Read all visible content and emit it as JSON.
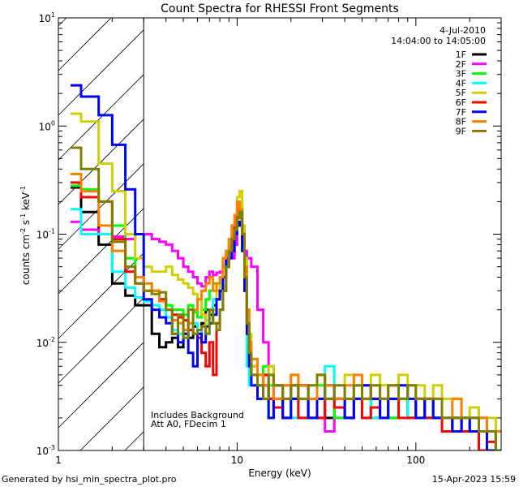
{
  "chart_data": {
    "type": "line",
    "title": "Count Spectra for RHESSI Front Segments",
    "xlabel": "Energy (keV)",
    "ylabel": {
      "pre": "counts cm",
      "exp1": "-2",
      "mid": " s",
      "exp2": "-1",
      "post": " keV",
      "exp3": "-1"
    },
    "xscale": "log",
    "yscale": "log",
    "xlim": [
      1,
      300
    ],
    "ylim": [
      0.001,
      10
    ],
    "x_ticks": [
      {
        "value": 1,
        "label": "1"
      },
      {
        "value": 10,
        "label": "10"
      },
      {
        "value": 100,
        "label": "100"
      }
    ],
    "y_ticks": [
      {
        "value": 0.001,
        "base": "10",
        "exp": "-3"
      },
      {
        "value": 0.01,
        "base": "10",
        "exp": "-2"
      },
      {
        "value": 0.1,
        "base": "10",
        "exp": "-1"
      },
      {
        "value": 1,
        "base": "10",
        "exp": "0"
      },
      {
        "value": 10,
        "base": "10",
        "exp": "1"
      }
    ],
    "excluded_region_keV": [
      1,
      3
    ],
    "annotations": {
      "date": "4-Jul-2010",
      "time_range": "14:04:00 to 14:05:00",
      "note1": "Includes Background",
      "note2": "Att A0, FDecim 1"
    },
    "legend_position": "top-right",
    "energy_edges_keV": [
      1.17,
      1.34,
      1.68,
      2.0,
      2.37,
      2.69,
      3.0,
      3.33,
      3.67,
      4.0,
      4.33,
      4.67,
      5.0,
      5.33,
      5.67,
      6.0,
      6.33,
      6.67,
      7.0,
      7.33,
      7.67,
      8.0,
      8.33,
      8.67,
      9.0,
      9.33,
      9.67,
      10.0,
      10.33,
      10.67,
      11.0,
      11.33,
      11.67,
      12.0,
      13,
      14,
      15,
      16,
      18,
      20,
      22,
      25,
      28,
      31,
      35,
      40,
      45,
      50,
      56,
      63,
      70,
      80,
      90,
      100,
      112,
      125,
      140,
      160,
      180,
      200,
      225,
      250,
      280,
      300
    ],
    "series": [
      {
        "name": "1F",
        "color": "#000000",
        "values": [
          0.27,
          0.16,
          0.08,
          0.035,
          0.027,
          0.022,
          0.022,
          0.012,
          0.009,
          0.01,
          0.011,
          0.009,
          0.012,
          0.011,
          0.014,
          0.013,
          0.015,
          0.02,
          0.018,
          0.022,
          0.025,
          0.03,
          0.04,
          0.05,
          0.07,
          0.08,
          0.11,
          0.15,
          0.16,
          0.1,
          0.05,
          0.015,
          0.008,
          0.006,
          0.004,
          0.005,
          0.003,
          0.004,
          0.002,
          0.003,
          0.004,
          0.002,
          0.003,
          0.002,
          0.003,
          0.002,
          0.004,
          0.003,
          0.002,
          0.003,
          0.002,
          0.003,
          0.002,
          0.003,
          0.002,
          0.002,
          0.0015,
          0.002,
          0.0015,
          0.002,
          0.0015,
          0.0015,
          0.001
        ]
      },
      {
        "name": "2F",
        "color": "#ff00ff",
        "values": [
          0.13,
          0.11,
          0.1,
          0.095,
          0.09,
          0.1,
          0.1,
          0.09,
          0.085,
          0.08,
          0.07,
          0.06,
          0.05,
          0.045,
          0.04,
          0.035,
          0.033,
          0.04,
          0.045,
          0.042,
          0.044,
          0.045,
          0.05,
          0.06,
          0.07,
          0.06,
          0.08,
          0.14,
          0.17,
          0.09,
          0.07,
          0.06,
          0.06,
          0.05,
          0.02,
          0.01,
          0.006,
          0.004,
          0.003,
          0.003,
          0.002,
          0.002,
          0.002,
          0.0015,
          0.002,
          0.002,
          0.003,
          0.004,
          0.003,
          0.003,
          0.004,
          0.003,
          0.002,
          0.003,
          0.003,
          0.002,
          0.002,
          0.002,
          0.002,
          0.0015,
          0.002,
          0.0015,
          0.001
        ]
      },
      {
        "name": "3F",
        "color": "#00ff00",
        "values": [
          0.28,
          0.26,
          0.2,
          0.12,
          0.06,
          0.04,
          0.035,
          0.03,
          0.025,
          0.022,
          0.02,
          0.02,
          0.018,
          0.022,
          0.019,
          0.017,
          0.02,
          0.025,
          0.03,
          0.035,
          0.03,
          0.04,
          0.05,
          0.07,
          0.08,
          0.09,
          0.12,
          0.17,
          0.19,
          0.11,
          0.05,
          0.02,
          0.01,
          0.007,
          0.005,
          0.006,
          0.004,
          0.003,
          0.004,
          0.003,
          0.002,
          0.003,
          0.004,
          0.003,
          0.002,
          0.003,
          0.004,
          0.002,
          0.003,
          0.003,
          0.002,
          0.003,
          0.002,
          0.002,
          0.003,
          0.002,
          0.002,
          0.0015,
          0.002,
          0.0015,
          0.002,
          0.0015,
          0.001
        ]
      },
      {
        "name": "4F",
        "color": "#00ffff",
        "values": [
          0.17,
          0.1,
          0.1,
          0.045,
          0.032,
          0.026,
          0.024,
          0.022,
          0.02,
          0.017,
          0.013,
          0.012,
          0.012,
          0.013,
          0.015,
          0.012,
          0.014,
          0.016,
          0.02,
          0.025,
          0.03,
          0.035,
          0.05,
          0.06,
          0.08,
          0.1,
          0.13,
          0.14,
          0.15,
          0.07,
          0.03,
          0.006,
          0.004,
          0.004,
          0.003,
          0.003,
          0.002,
          0.003,
          0.004,
          0.002,
          0.003,
          0.002,
          0.003,
          0.006,
          0.003,
          0.002,
          0.004,
          0.003,
          0.002,
          0.003,
          0.004,
          0.003,
          0.002,
          0.003,
          0.002,
          0.002,
          0.0015,
          0.002,
          0.002,
          0.0015,
          0.002,
          0.0015,
          0.001
        ]
      },
      {
        "name": "5F",
        "color": "#d0d000",
        "values": [
          1.3,
          1.1,
          0.45,
          0.25,
          0.1,
          0.06,
          0.05,
          0.045,
          0.045,
          0.05,
          0.042,
          0.038,
          0.035,
          0.032,
          0.028,
          0.025,
          0.018,
          0.014,
          0.015,
          0.02,
          0.03,
          0.04,
          0.06,
          0.07,
          0.09,
          0.12,
          0.15,
          0.22,
          0.25,
          0.12,
          0.06,
          0.02,
          0.012,
          0.006,
          0.005,
          0.004,
          0.006,
          0.003,
          0.004,
          0.005,
          0.003,
          0.004,
          0.005,
          0.004,
          0.003,
          0.005,
          0.004,
          0.003,
          0.005,
          0.004,
          0.003,
          0.005,
          0.004,
          0.004,
          0.003,
          0.004,
          0.003,
          0.003,
          0.002,
          0.0025,
          0.002,
          0.002,
          0.0015
        ]
      },
      {
        "name": "6F",
        "color": "#ff0000",
        "values": [
          0.3,
          0.22,
          0.2,
          0.09,
          0.045,
          0.035,
          0.03,
          0.03,
          0.025,
          0.02,
          0.018,
          0.017,
          0.016,
          0.013,
          0.012,
          0.011,
          0.008,
          0.006,
          0.01,
          0.005,
          0.015,
          0.02,
          0.03,
          0.05,
          0.07,
          0.09,
          0.12,
          0.16,
          0.14,
          0.09,
          0.04,
          0.015,
          0.007,
          0.005,
          0.004,
          0.005,
          0.003,
          0.0025,
          0.003,
          0.004,
          0.002,
          0.003,
          0.002,
          0.003,
          0.0025,
          0.002,
          0.003,
          0.002,
          0.0025,
          0.002,
          0.003,
          0.002,
          0.002,
          0.003,
          0.002,
          0.002,
          0.0015,
          0.002,
          0.0015,
          0.0015,
          0.001,
          0.0012,
          0.001
        ]
      },
      {
        "name": "7F",
        "color": "#0000ff",
        "values": [
          2.38,
          1.87,
          1.26,
          0.67,
          0.26,
          0.1,
          0.025,
          0.02,
          0.017,
          0.015,
          0.012,
          0.01,
          0.012,
          0.008,
          0.006,
          0.012,
          0.01,
          0.014,
          0.015,
          0.018,
          0.025,
          0.03,
          0.04,
          0.06,
          0.06,
          0.07,
          0.1,
          0.13,
          0.12,
          0.07,
          0.03,
          0.012,
          0.006,
          0.004,
          0.003,
          0.004,
          0.002,
          0.003,
          0.002,
          0.003,
          0.004,
          0.002,
          0.003,
          0.004,
          0.003,
          0.002,
          0.003,
          0.004,
          0.003,
          0.002,
          0.003,
          0.004,
          0.003,
          0.002,
          0.003,
          0.002,
          0.002,
          0.0015,
          0.002,
          0.0015,
          0.0015,
          0.001,
          0.001
        ]
      },
      {
        "name": "8F",
        "color": "#ff8000",
        "values": [
          0.36,
          0.25,
          0.12,
          0.07,
          0.05,
          0.04,
          0.035,
          0.03,
          0.024,
          0.02,
          0.016,
          0.015,
          0.013,
          0.015,
          0.02,
          0.025,
          0.03,
          0.035,
          0.04,
          0.03,
          0.035,
          0.04,
          0.06,
          0.07,
          0.09,
          0.12,
          0.15,
          0.2,
          0.17,
          0.1,
          0.05,
          0.02,
          0.01,
          0.007,
          0.005,
          0.004,
          0.005,
          0.003,
          0.004,
          0.005,
          0.004,
          0.003,
          0.005,
          0.004,
          0.003,
          0.004,
          0.005,
          0.003,
          0.004,
          0.003,
          0.004,
          0.003,
          0.004,
          0.003,
          0.003,
          0.003,
          0.002,
          0.003,
          0.002,
          0.002,
          0.002,
          0.0015,
          0.0015
        ]
      },
      {
        "name": "9F",
        "color": "#808000",
        "values": [
          0.63,
          0.4,
          0.2,
          0.085,
          0.05,
          0.035,
          0.03,
          0.028,
          0.029,
          0.02,
          0.012,
          0.018,
          0.011,
          0.02,
          0.012,
          0.013,
          0.014,
          0.012,
          0.02,
          0.015,
          0.013,
          0.02,
          0.03,
          0.05,
          0.07,
          0.09,
          0.11,
          0.14,
          0.16,
          0.1,
          0.04,
          0.015,
          0.008,
          0.005,
          0.004,
          0.003,
          0.005,
          0.004,
          0.003,
          0.004,
          0.003,
          0.004,
          0.005,
          0.003,
          0.004,
          0.003,
          0.004,
          0.003,
          0.004,
          0.003,
          0.004,
          0.003,
          0.004,
          0.003,
          0.003,
          0.003,
          0.002,
          0.002,
          0.002,
          0.002,
          0.0015,
          0.0015,
          0.001
        ]
      }
    ]
  },
  "footer": {
    "generated_by": "Generated by hsi_min_spectra_plot.pro",
    "timestamp": "15-Apr-2023 15:59"
  }
}
